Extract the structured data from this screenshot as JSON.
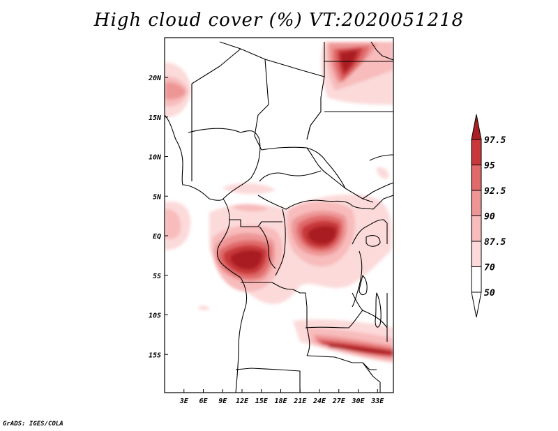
{
  "title": "High cloud cover (%) VT:2020051218",
  "credit": "GrADS: IGES/COLA",
  "lat_ticks": [
    {
      "label": "20N",
      "lat": 20
    },
    {
      "label": "15N",
      "lat": 15
    },
    {
      "label": "10N",
      "lat": 10
    },
    {
      "label": "5N",
      "lat": 5
    },
    {
      "label": "EQ",
      "lat": 0
    },
    {
      "label": "5S",
      "lat": -5
    },
    {
      "label": "10S",
      "lat": -10
    },
    {
      "label": "15S",
      "lat": -15
    }
  ],
  "lon_ticks": [
    {
      "label": "3E",
      "lon": 3
    },
    {
      "label": "6E",
      "lon": 6
    },
    {
      "label": "9E",
      "lon": 9
    },
    {
      "label": "12E",
      "lon": 12
    },
    {
      "label": "15E",
      "lon": 15
    },
    {
      "label": "18E",
      "lon": 18
    },
    {
      "label": "21E",
      "lon": 21
    },
    {
      "label": "24E",
      "lon": 24
    },
    {
      "label": "27E",
      "lon": 27
    },
    {
      "label": "30E",
      "lon": 30
    },
    {
      "label": "33E",
      "lon": 33
    }
  ],
  "colorbar": {
    "levels": [
      "97.5",
      "95",
      "92.5",
      "90",
      "87.5",
      "70",
      "50"
    ],
    "colors": [
      "#a91f24",
      "#c8373a",
      "#e06a6a",
      "#ee9696",
      "#f8bcbc",
      "#fcdada",
      "#ffffff"
    ]
  }
}
